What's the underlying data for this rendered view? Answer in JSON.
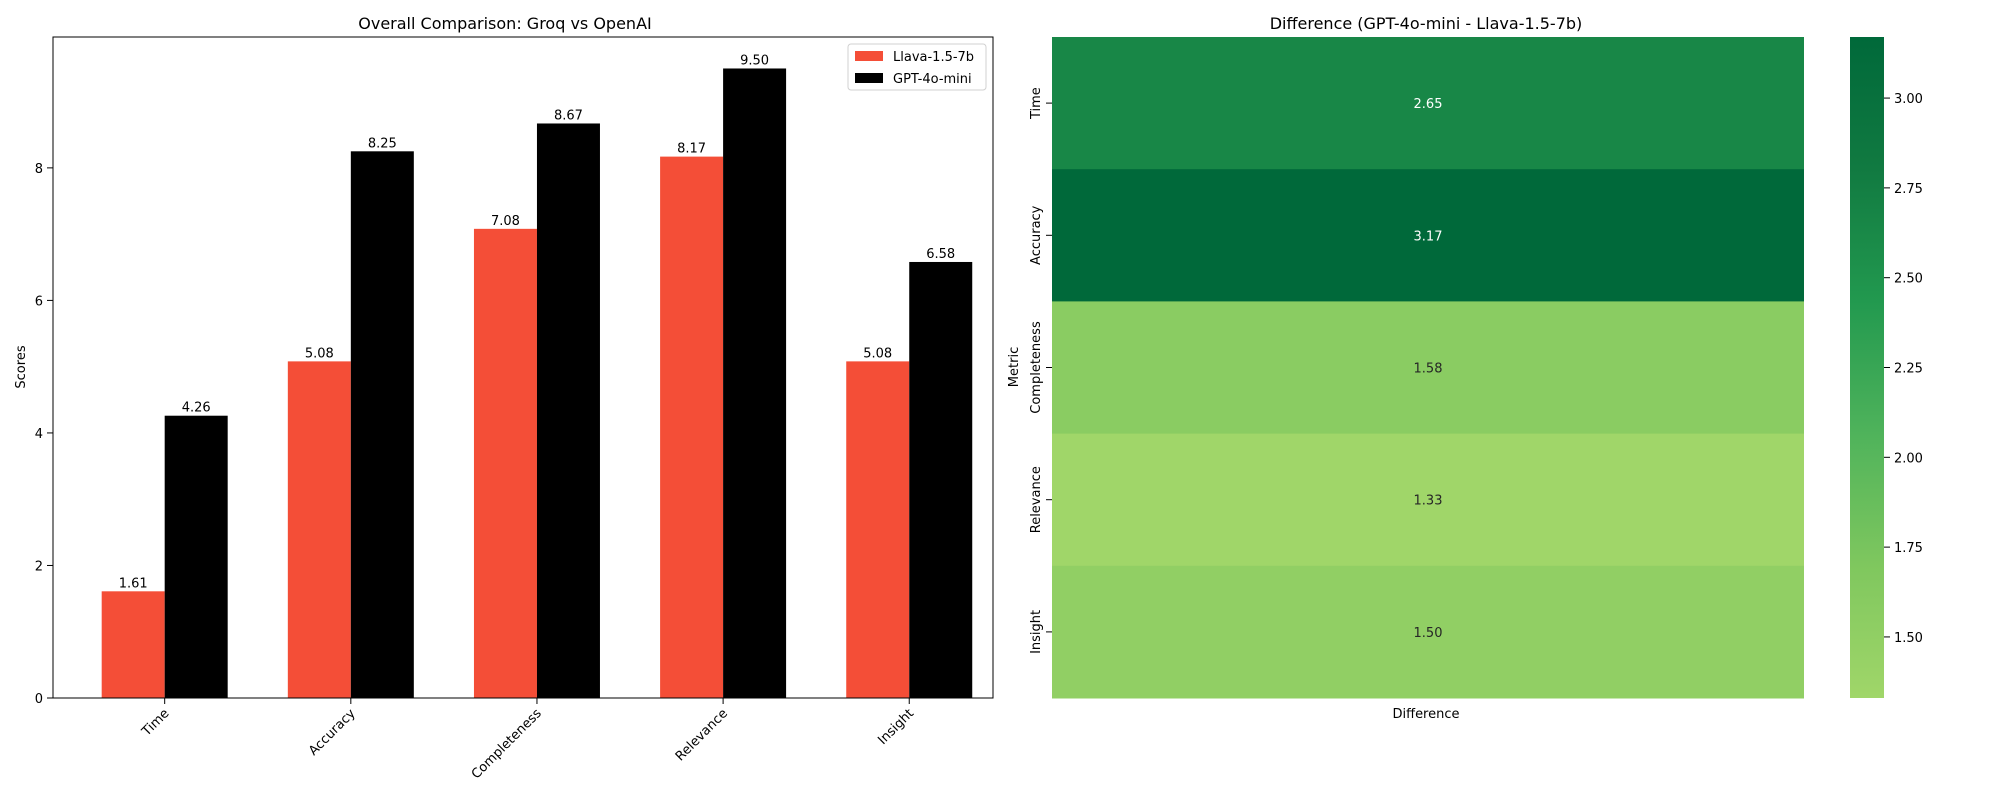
{
  "chart_data": [
    {
      "type": "bar",
      "title": "Overall Comparison: Groq vs OpenAI",
      "xlabel": "",
      "ylabel": "Scores",
      "categories": [
        "Time",
        "Accuracy",
        "Completeness",
        "Relevance",
        "Insight"
      ],
      "series": [
        {
          "name": "Llava-1.5-7b",
          "color": "#f44e37",
          "values": [
            1.61,
            5.08,
            7.08,
            8.17,
            5.08
          ]
        },
        {
          "name": "GPT-4o-mini",
          "color": "#000000",
          "values": [
            4.26,
            8.25,
            8.67,
            9.5,
            6.58
          ]
        }
      ],
      "value_labels": {
        "Llava-1.5-7b": [
          "1.61",
          "5.08",
          "7.08",
          "8.17",
          "5.08"
        ],
        "GPT-4o-mini": [
          "4.26",
          "8.25",
          "8.67",
          "9.50",
          "6.58"
        ]
      },
      "ylim": [
        0,
        9.975
      ],
      "yticks": [
        0,
        2,
        4,
        6,
        8
      ],
      "ytick_labels": [
        "0",
        "2",
        "4",
        "6",
        "8"
      ],
      "legend_position": "top-right",
      "grid": false
    },
    {
      "type": "heatmap",
      "title": "Difference (GPT-4o-mini - Llava-1.5-7b)",
      "xlabel": "",
      "ylabel": "Metric",
      "columns": [
        "Difference"
      ],
      "rows": [
        "Time",
        "Accuracy",
        "Completeness",
        "Relevance",
        "Insight"
      ],
      "values": [
        2.65,
        3.17,
        1.58,
        1.33,
        1.5
      ],
      "value_labels": [
        "2.65",
        "3.17",
        "1.58",
        "1.33",
        "1.50"
      ],
      "colorbar": {
        "range": [
          1.33,
          3.17
        ],
        "ticks": [
          1.5,
          1.75,
          2.0,
          2.25,
          2.5,
          2.75,
          3.0
        ],
        "tick_labels": [
          "1.50",
          "1.75",
          "2.00",
          "2.25",
          "2.50",
          "2.75",
          "3.00"
        ],
        "colors": [
          "#a0d669",
          "#7fc75e",
          "#4fb35b",
          "#22994f",
          "#117a41",
          "#00693a"
        ]
      }
    }
  ]
}
